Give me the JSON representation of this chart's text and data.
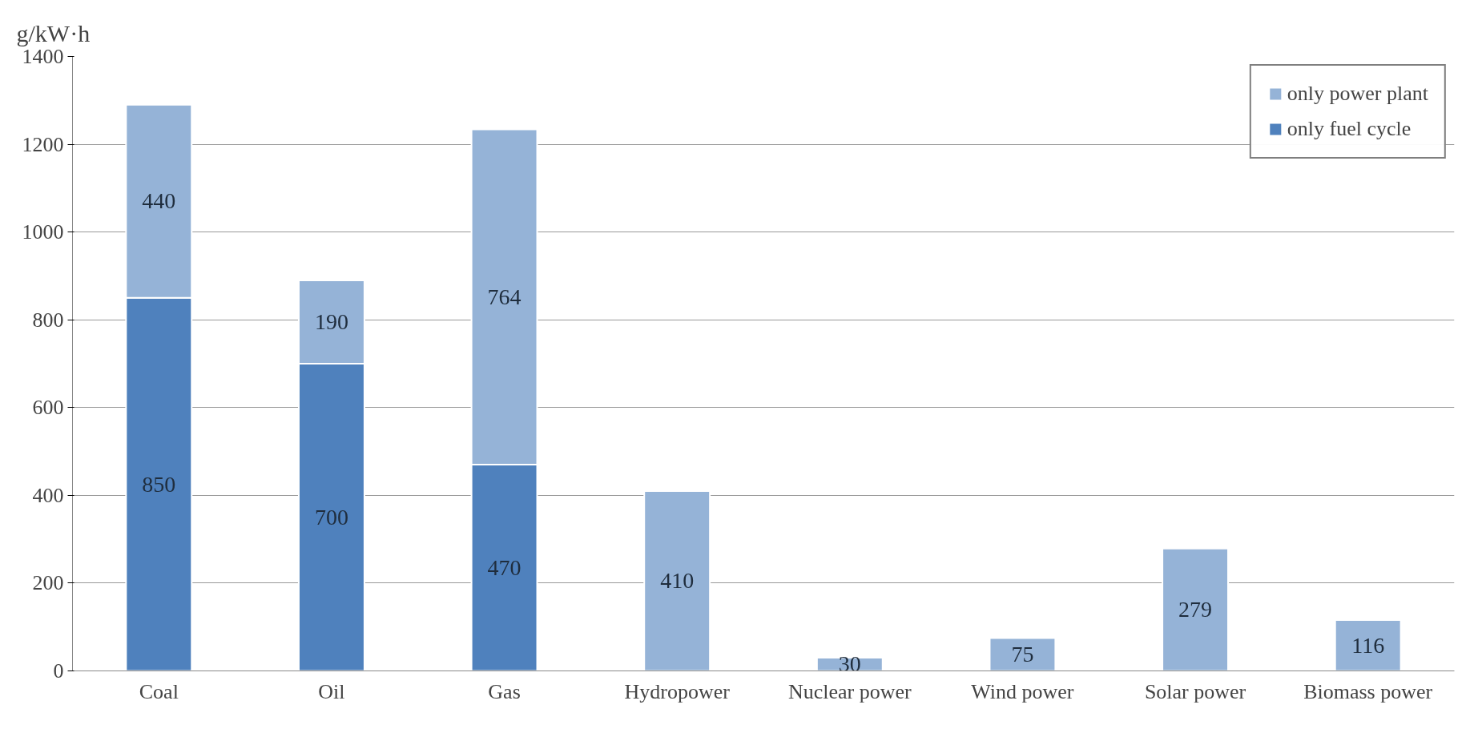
{
  "chart_data": {
    "type": "bar",
    "stacked": true,
    "ylabel": "g/kW·h",
    "categories": [
      "Coal",
      "Oil",
      "Gas",
      "Hydropower",
      "Nuclear power",
      "Wind power",
      "Solar power",
      "Biomass power"
    ],
    "series": [
      {
        "name": "only fuel cycle",
        "color": "#4f81bd",
        "values": [
          850,
          700,
          470,
          null,
          null,
          null,
          null,
          null
        ]
      },
      {
        "name": "only power plant",
        "color": "#95b3d7",
        "values": [
          440,
          190,
          764,
          410,
          30,
          75,
          279,
          116
        ]
      }
    ],
    "ylim": [
      0,
      1400
    ],
    "yticks": [
      0,
      200,
      400,
      600,
      800,
      1000,
      1200,
      1400
    ],
    "grid": "y",
    "legend": "top right",
    "data_labels": true
  }
}
